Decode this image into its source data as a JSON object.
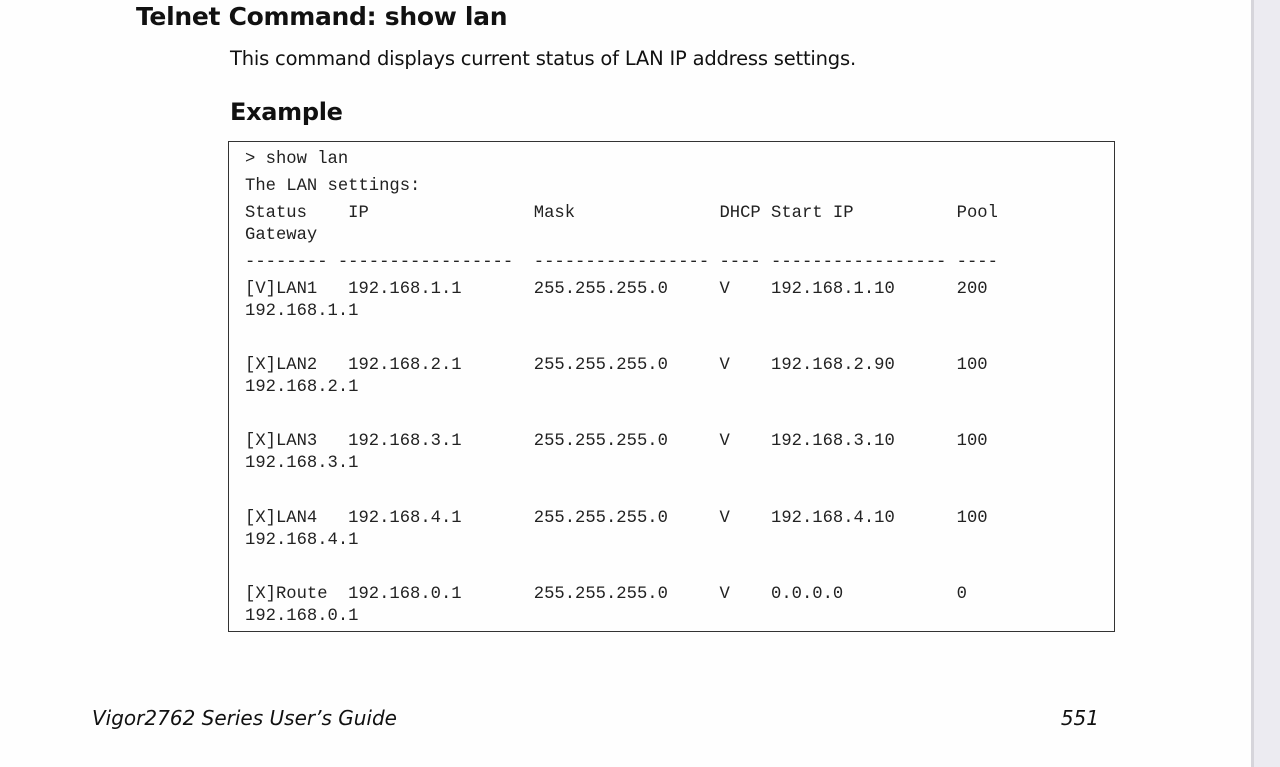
{
  "heading": "Telnet Command: show lan",
  "description": "This command displays current status of LAN IP address settings.",
  "example_heading": "Example",
  "code_lines": [
    "> show lan",
    "The LAN settings:",
    "Status    IP                Mask              DHCP Start IP          Pool",
    "Gateway",
    "-------- -----------------  ----------------- ---- ----------------- ----",
    "[V]LAN1   192.168.1.1       255.255.255.0     V    192.168.1.10      200",
    "192.168.1.1",
    "[X]LAN2   192.168.2.1       255.255.255.0     V    192.168.2.90      100",
    "192.168.2.1",
    "[X]LAN3   192.168.3.1       255.255.255.0     V    192.168.3.10      100",
    "192.168.3.1",
    "[X]LAN4   192.168.4.1       255.255.255.0     V    192.168.4.10      100",
    "192.168.4.1",
    "[X]Route  192.168.0.1       255.255.255.0     V    0.0.0.0           0",
    "192.168.0.1"
  ],
  "footer": {
    "guide_title": "Vigor2762 Series User’s Guide",
    "page_number": "551"
  }
}
